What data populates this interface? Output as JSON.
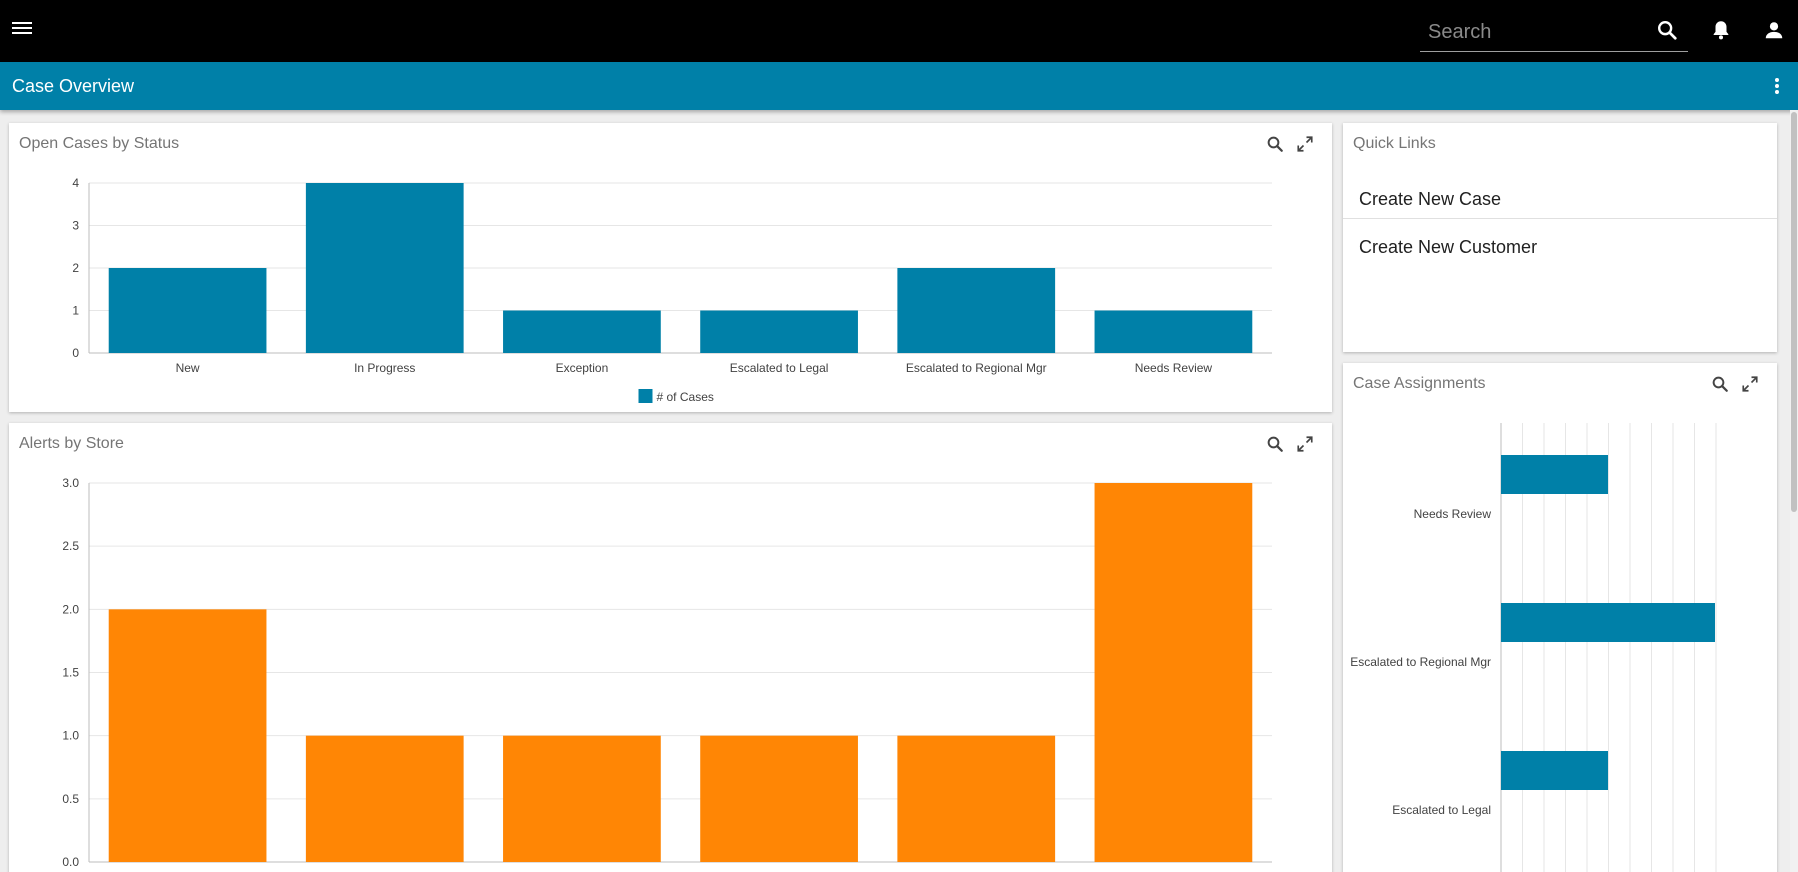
{
  "header": {
    "search_placeholder": "Search",
    "icons": [
      "menu-icon",
      "search-icon",
      "bell-icon",
      "person-icon"
    ]
  },
  "page": {
    "title": "Case Overview"
  },
  "open_cases": {
    "title": "Open Cases by Status"
  },
  "alerts": {
    "title": "Alerts by Store"
  },
  "quick_links": {
    "title": "Quick Links",
    "items": [
      "Create New Case",
      "Create New Customer"
    ]
  },
  "case_assignments": {
    "title": "Case Assignments"
  },
  "colors": {
    "primary": "#0080a8",
    "orange": "#ff8605",
    "topbar": "#000000"
  },
  "chart_data": [
    {
      "type": "bar",
      "categories": [
        "New",
        "In Progress",
        "Exception",
        "Escalated to Legal",
        "Escalated to Regional Mgr",
        "Needs Review"
      ],
      "series": [
        {
          "name": "# of Cases",
          "values": [
            2,
            4,
            1,
            1,
            2,
            1
          ]
        }
      ],
      "ylim": [
        0,
        4
      ],
      "yticks": [
        "0",
        "1",
        "2",
        "3",
        "4"
      ],
      "legend": "bottom",
      "grid": true,
      "color": "#0080a8"
    },
    {
      "type": "bar",
      "categories": [
        "",
        "",
        "",
        "",
        "",
        ""
      ],
      "values": [
        2,
        1,
        1,
        1,
        1,
        3
      ],
      "ylim": [
        0,
        3
      ],
      "yticks": [
        "0.0",
        "0.5",
        "1.0",
        "1.5",
        "2.0",
        "2.5",
        "3.0"
      ],
      "grid": true,
      "color": "#ff8605"
    },
    {
      "type": "bar",
      "orientation": "horizontal",
      "categories": [
        "Needs Review",
        "Escalated to Regional Mgr",
        "Escalated to Legal"
      ],
      "values": [
        1,
        2,
        1
      ],
      "grid": true,
      "color": "#0080a8"
    }
  ]
}
